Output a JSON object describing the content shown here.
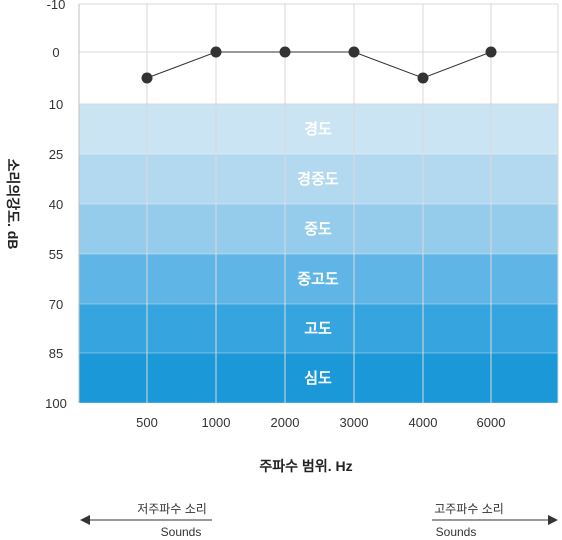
{
  "chart_data": {
    "type": "line",
    "ylabel": "소리의강도. dB",
    "xlabel": "주파수 범위. Hz",
    "x_categories": [
      "500",
      "1000",
      "2000",
      "3000",
      "4000",
      "6000"
    ],
    "y_ticks": [
      "-10",
      "0",
      "10",
      "25",
      "40",
      "55",
      "70",
      "85",
      "100"
    ],
    "ylim": [
      -10,
      100
    ],
    "y_inverted": true,
    "grid": true,
    "series": [
      {
        "values": [
          5,
          0,
          0,
          0,
          5,
          0
        ],
        "color": "#333333"
      }
    ],
    "bands": [
      {
        "label": "경도",
        "from": 10,
        "to": 25,
        "color": "#cbe4f3"
      },
      {
        "label": "경중도",
        "from": 25,
        "to": 40,
        "color": "#b2d9ef"
      },
      {
        "label": "중도",
        "from": 40,
        "to": 55,
        "color": "#95cbeb"
      },
      {
        "label": "중고도",
        "from": 55,
        "to": 70,
        "color": "#5fb6e6"
      },
      {
        "label": "고도",
        "from": 70,
        "to": 85,
        "color": "#36a5df"
      },
      {
        "label": "심도",
        "from": 85,
        "to": 100,
        "color": "#1a98d8"
      }
    ]
  },
  "range_indicators": {
    "low": {
      "label": "저주파수 소리",
      "sub": "Sounds"
    },
    "high": {
      "label": "고주파수 소리",
      "sub": "Sounds"
    }
  }
}
